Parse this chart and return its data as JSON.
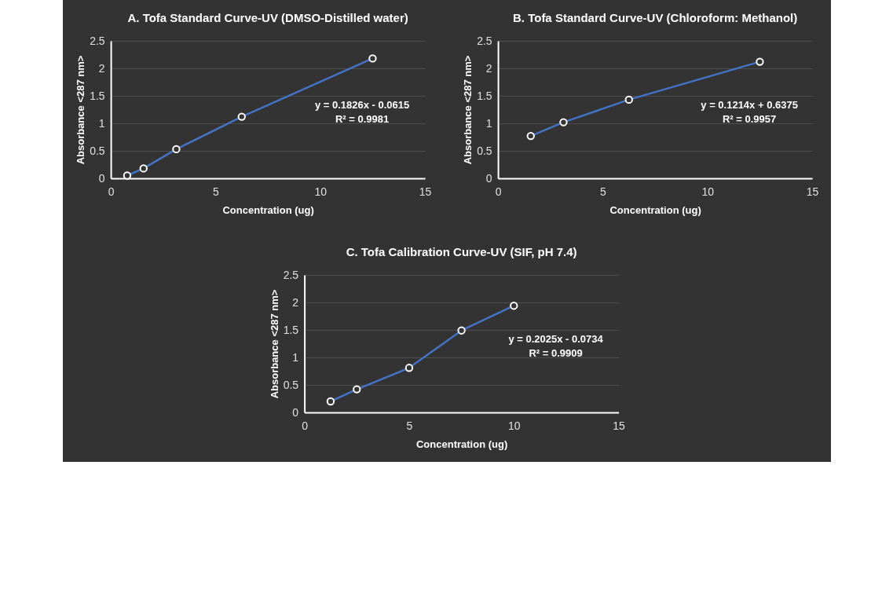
{
  "chart_data": [
    {
      "type": "line",
      "title": "A. Tofa Standard Curve-UV (DMSO-Distilled water)",
      "xlabel": "Concentration (ug)",
      "ylabel": "Absorbance <287 nm>",
      "x": [
        0.78125,
        1.5625,
        3.125,
        6.25,
        12.5
      ],
      "series": [
        {
          "color": "#4472c4",
          "values": [
            0.05,
            0.18,
            0.53,
            1.12,
            2.18
          ]
        }
      ],
      "xlim": [
        0,
        15
      ],
      "xticks": [
        0,
        5,
        10,
        15
      ],
      "ylim": [
        0,
        2.5
      ],
      "yticks": [
        0,
        0.5,
        1,
        1.5,
        2,
        2.5
      ],
      "grid": "y",
      "marker": "circle",
      "line_style": "solid",
      "annotations": [
        "y = 0.1826x - 0.0615",
        "R² = 0.9981"
      ]
    },
    {
      "type": "line",
      "title": "B. Tofa Standard Curve-UV (Chloroform: Methanol)",
      "xlabel": "Concentration (ug)",
      "ylabel": "Absorbance <287 nm>",
      "x": [
        1.5625,
        3.125,
        6.25,
        12.5
      ],
      "series": [
        {
          "color": "#4472c4",
          "values": [
            0.77,
            1.02,
            1.43,
            2.12
          ]
        }
      ],
      "xlim": [
        0,
        15
      ],
      "xticks": [
        0,
        5,
        10,
        15
      ],
      "ylim": [
        0,
        2.5
      ],
      "yticks": [
        0,
        0.5,
        1,
        1.5,
        2,
        2.5
      ],
      "grid": "y",
      "marker": "circle",
      "line_style": "solid",
      "annotations": [
        "y = 0.1214x + 0.6375",
        "R² = 0.9957"
      ]
    },
    {
      "type": "line",
      "title": "C. Tofa Calibration Curve-UV (SIF, pH 7.4)",
      "xlabel": "Concentration (ug)",
      "ylabel": "Absorbance <287 nm>",
      "x": [
        1.25,
        2.5,
        5,
        7.5,
        10
      ],
      "series": [
        {
          "color": "#4472c4",
          "values": [
            0.2,
            0.42,
            0.81,
            1.49,
            1.94
          ]
        }
      ],
      "xlim": [
        0,
        15
      ],
      "xticks": [
        0,
        5,
        10,
        15
      ],
      "ylim": [
        0,
        2.5
      ],
      "yticks": [
        0,
        0.5,
        1,
        1.5,
        2,
        2.5
      ],
      "grid": "y",
      "marker": "circle",
      "line_style": "solid",
      "annotations": [
        "y = 0.2025x - 0.0734",
        "R² = 0.9909"
      ]
    }
  ]
}
